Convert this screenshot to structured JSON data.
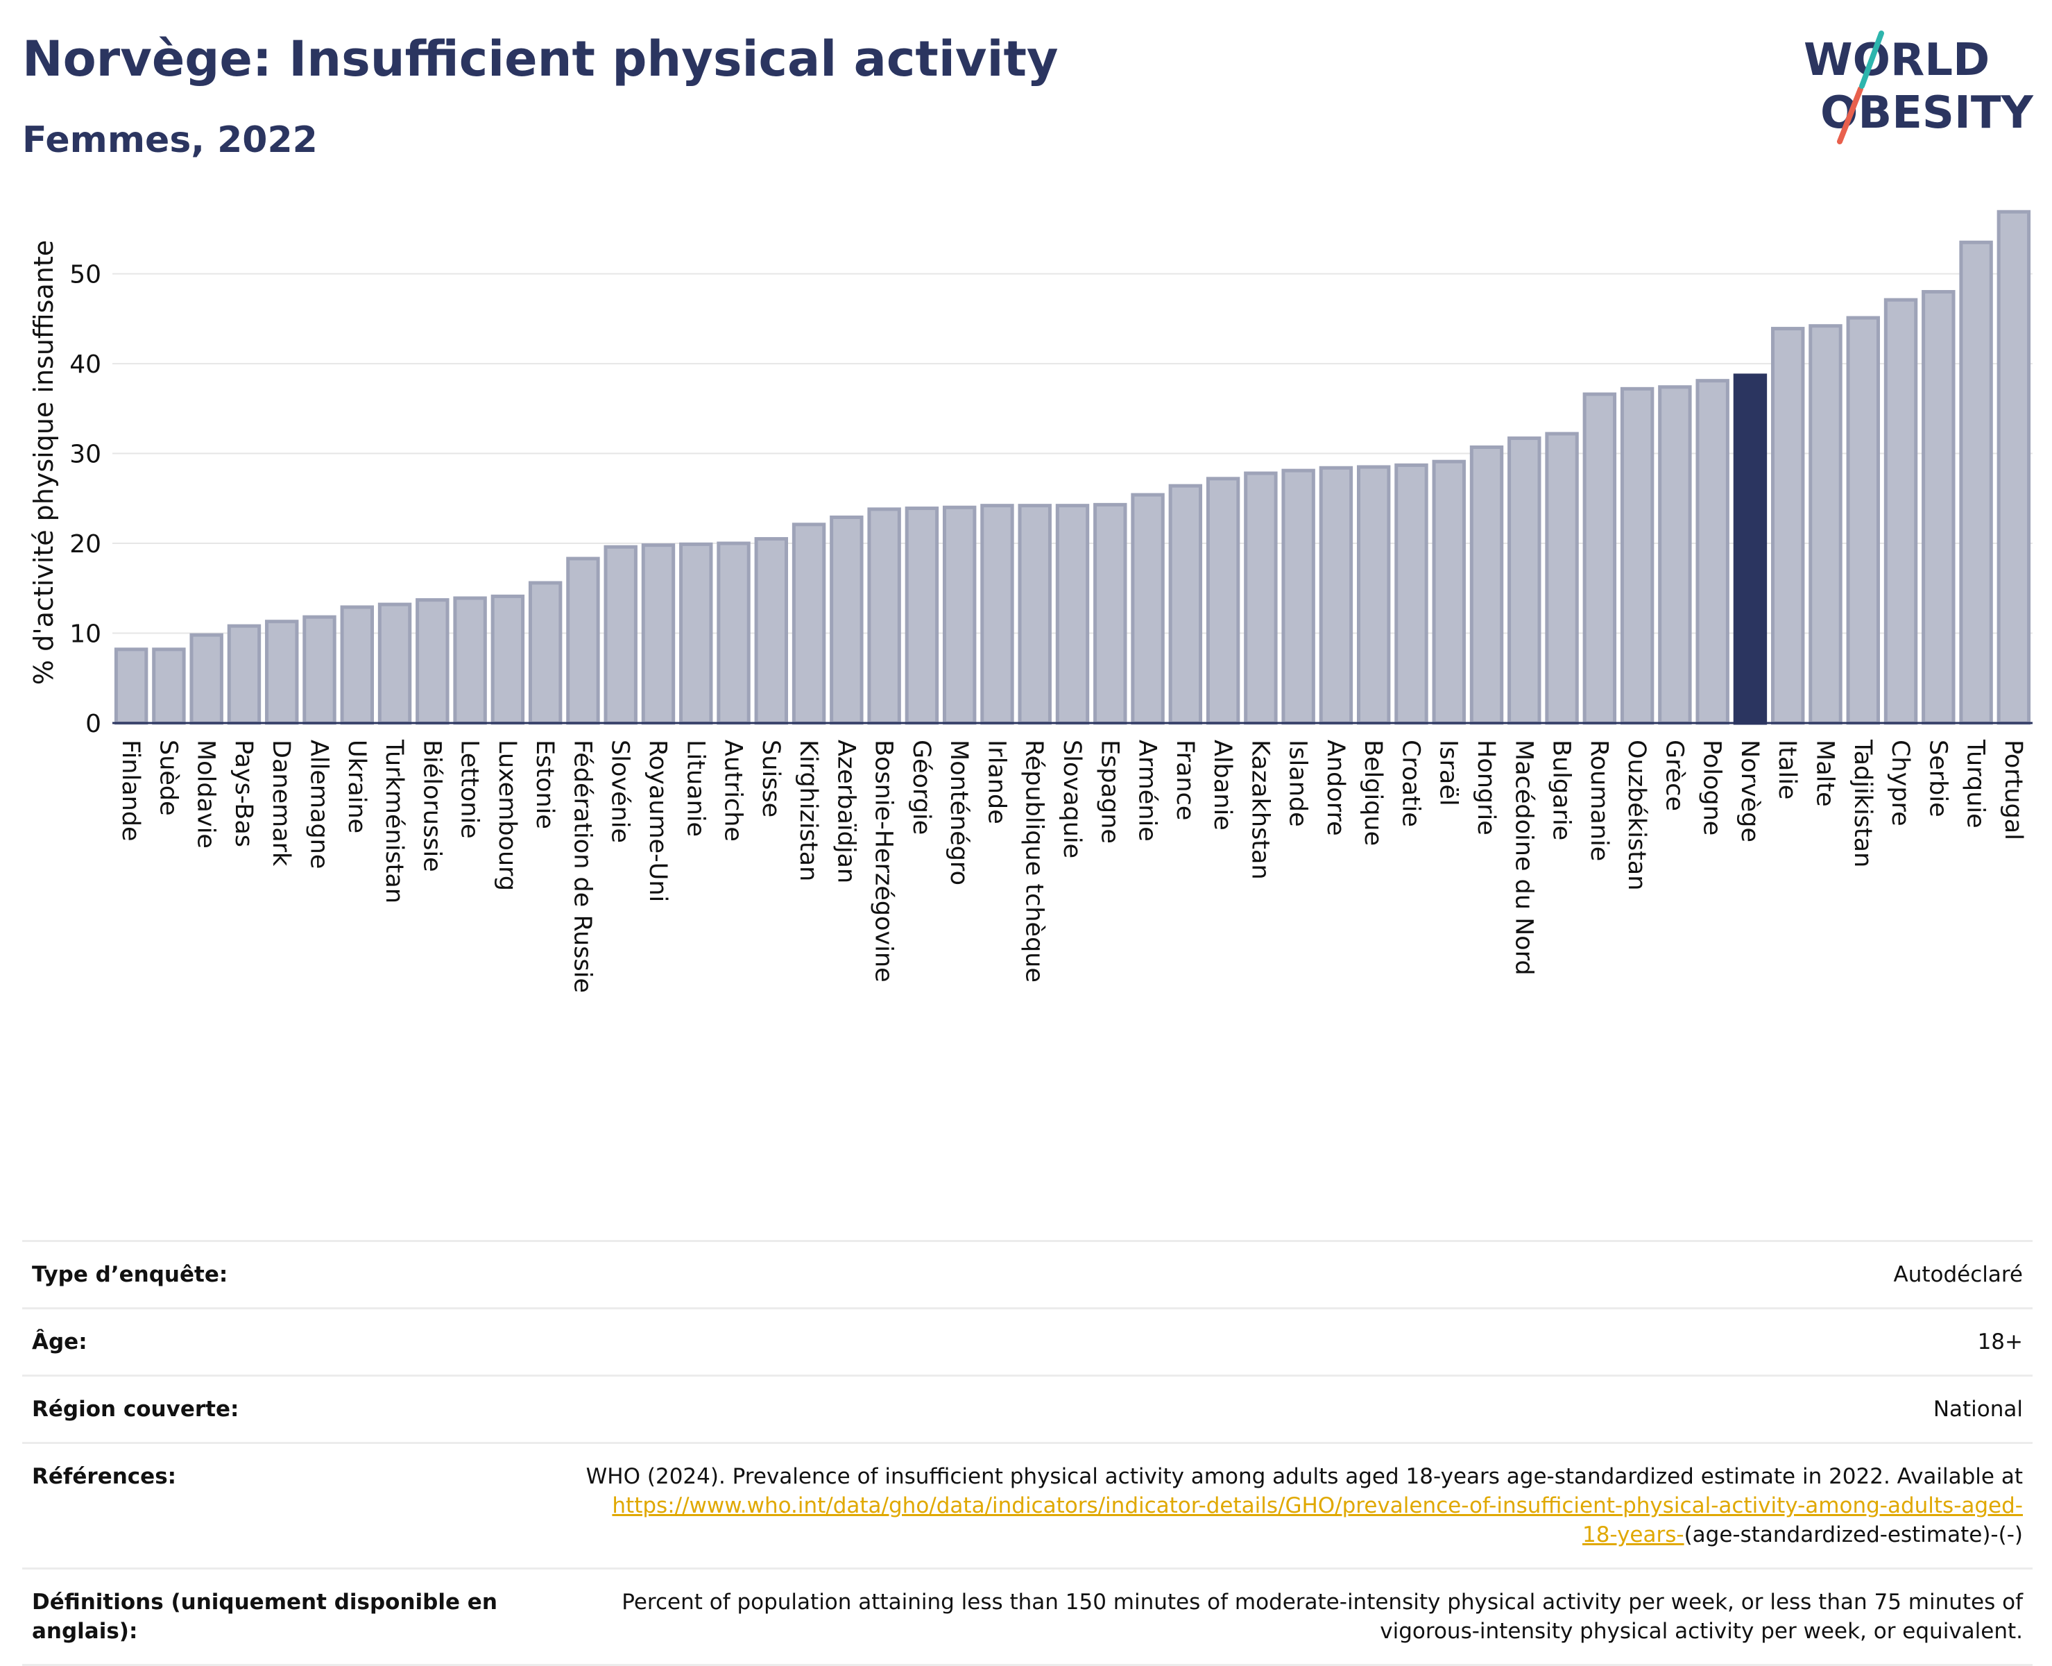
{
  "header": {
    "title": "Norvège: Insufficient physical activity",
    "subtitle": "Femmes, 2022"
  },
  "logo": {
    "line1": "WORLD",
    "line2": "OBESITY"
  },
  "colors": {
    "bar": "#b9bdcc",
    "bar_edge": "#9ea3b8",
    "highlight": "#2b3560",
    "grid": "#e6e6e6",
    "accent_teal": "#2db5ad",
    "accent_red": "#e8604d",
    "link": "#e0a800"
  },
  "chart_data": {
    "type": "bar",
    "ylabel": "% d'activité physique insuffisante",
    "ylim": [
      0,
      58
    ],
    "yticks": [
      0,
      10,
      20,
      30,
      40,
      50
    ],
    "highlight": "Norvège",
    "categories": [
      "Finlande",
      "Suède",
      "Moldavie",
      "Pays-Bas",
      "Danemark",
      "Allemagne",
      "Ukraine",
      "Turkménistan",
      "Biélorussie",
      "Lettonie",
      "Luxembourg",
      "Estonie",
      "Fédération de Russie",
      "Slovénie",
      "Royaume-Uni",
      "Lituanie",
      "Autriche",
      "Suisse",
      "Kirghizistan",
      "Azerbaïdjan",
      "Bosnie-Herzégovine",
      "Géorgie",
      "Monténégro",
      "Irlande",
      "République tchèque",
      "Slovaquie",
      "Espagne",
      "Arménie",
      "France",
      "Albanie",
      "Kazakhstan",
      "Islande",
      "Andorre",
      "Belgique",
      "Croatie",
      "Israël",
      "Hongrie",
      "Macédoine du Nord",
      "Bulgarie",
      "Roumanie",
      "Ouzbékistan",
      "Grèce",
      "Pologne",
      "Norvège",
      "Italie",
      "Malte",
      "Tadjikistan",
      "Chypre",
      "Serbie",
      "Turquie",
      "Portugal"
    ],
    "values": [
      8.2,
      8.2,
      9.8,
      10.8,
      11.3,
      11.8,
      12.9,
      13.2,
      13.7,
      13.9,
      14.1,
      15.6,
      18.3,
      19.6,
      19.8,
      19.9,
      20.0,
      20.5,
      22.1,
      22.9,
      23.8,
      23.9,
      24.0,
      24.2,
      24.2,
      24.2,
      24.3,
      25.4,
      26.4,
      27.2,
      27.8,
      28.1,
      28.4,
      28.5,
      28.7,
      29.1,
      30.7,
      31.7,
      32.2,
      36.6,
      37.2,
      37.4,
      38.1,
      38.7,
      43.9,
      44.2,
      45.1,
      47.1,
      48.0,
      53.5,
      56.9
    ]
  },
  "info": {
    "survey_label": "Type d’enquête:",
    "survey_value": "Autodéclaré",
    "age_label": "Âge:",
    "age_value": "18+",
    "region_label": "Région couverte:",
    "region_value": "National",
    "refs_label": "Références:",
    "refs_text": "WHO (2024). Prevalence of insufficient physical activity among adults aged 18-years age-standardized estimate in 2022. Available at",
    "refs_link1": "https://www.who.int/data/gho/data/indicators/indicator-details/GHO/prevalence-of-insufficient-physical-activity-among-adults-aged-",
    "refs_link2": "18-years-",
    "refs_tail": "(age-standardized-estimate)-(-)",
    "defs_label": "Définitions (uniquement disponible en anglais):",
    "defs_value": "Percent of population attaining less than 150 minutes of moderate-intensity physical activity per week, or less than 75 minutes of vigorous-intensity physical activity per week, or equivalent."
  }
}
